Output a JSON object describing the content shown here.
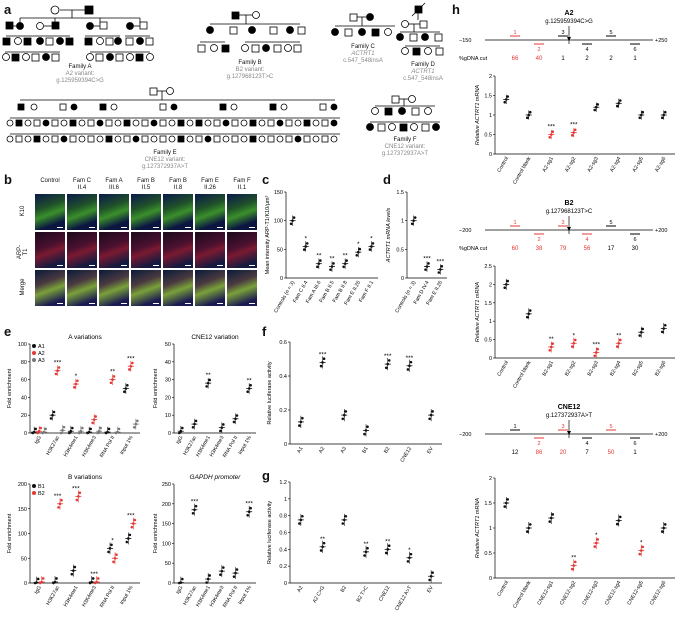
{
  "panels": {
    "a": "a",
    "b": "b",
    "c": "c",
    "d": "d",
    "e": "e",
    "f": "f",
    "g": "g",
    "h": "h"
  },
  "pedigrees": {
    "famA": {
      "name": "Family A",
      "variant": "A2 variant:",
      "hg": "g.125959394C>G"
    },
    "famB": {
      "name": "Family B",
      "variant": "B2 variant:",
      "hg": "g.127968123T>C"
    },
    "famC": {
      "name": "Family C",
      "variant": "ACTRT1",
      "hg": "c.547_548insA"
    },
    "famD": {
      "name": "Family D",
      "variant": "ACTRT1",
      "hg": "c.547_548insA"
    },
    "famE": {
      "name": "Family E",
      "variant": "CNE12 variant:",
      "hg": "g.127372937A>T"
    },
    "famF": {
      "name": "Family F",
      "variant": "CNE12 variant:",
      "hg": "g.127372937A>T"
    }
  },
  "micro": {
    "cols": [
      {
        "fam": "Control",
        "id": ""
      },
      {
        "fam": "Fam C",
        "id": "II.4"
      },
      {
        "fam": "Fam A",
        "id": "III.6"
      },
      {
        "fam": "Fam B",
        "id": "II.5"
      },
      {
        "fam": "Fam B",
        "id": "II.8"
      },
      {
        "fam": "Fam E",
        "id": "II.26"
      },
      {
        "fam": "Fam F",
        "id": "II.1"
      }
    ],
    "rows": [
      "K10",
      "ARP-T1",
      "Merge"
    ]
  },
  "chart_data": [
    {
      "panel": "c",
      "type": "scatter",
      "ylabel": "Mean intensity ARP-T1/K10/μm²",
      "ylim": [
        0,
        150
      ],
      "yticks": [
        0,
        50,
        100,
        150
      ],
      "categories": [
        "Controls (n = 3)",
        "Fam C II.4",
        "Fam A III.6",
        "Fam B II.5",
        "Fam B II.8",
        "Fam E II.26",
        "Fam F II.1"
      ],
      "values": [
        100,
        55,
        25,
        20,
        25,
        45,
        55
      ],
      "sig": [
        "",
        "*",
        "**",
        "**",
        "**",
        "*",
        "*"
      ]
    },
    {
      "panel": "d",
      "type": "scatter",
      "ylabel": "ACTRT1 mRNA levels",
      "ylim": [
        0,
        1.5
      ],
      "yticks": [
        0,
        0.5,
        1.0,
        1.5
      ],
      "categories": [
        "Controls (n = 3)",
        "Fam D IV.4",
        "Fam E II.26"
      ],
      "values": [
        1.0,
        0.2,
        0.15
      ],
      "sig": [
        "",
        "***",
        "***"
      ]
    },
    {
      "panel": "e1",
      "type": "scatter",
      "title": "A variations",
      "ylabel": "Fold enrichment",
      "ylim": [
        0,
        100
      ],
      "yticks": [
        0,
        20,
        40,
        60,
        80,
        100
      ],
      "categories": [
        "IgG",
        "H3K27ac",
        "H3K4me1",
        "H3K4me3",
        "RNA Pol II",
        "Input 1%"
      ],
      "series": [
        {
          "name": "A1",
          "values": [
            1,
            20,
            2,
            1,
            1,
            50
          ]
        },
        {
          "name": "A2",
          "values": [
            2,
            70,
            55,
            15,
            60,
            75
          ]
        },
        {
          "name": "A3",
          "values": [
            1,
            3,
            2,
            2,
            1,
            10
          ]
        }
      ],
      "sig": [
        "",
        "***",
        "*",
        "",
        "**",
        "***"
      ]
    },
    {
      "panel": "e2",
      "type": "scatter",
      "title": "CNE12 variation",
      "ylabel": "Fold enrichment",
      "ylim": [
        0,
        50
      ],
      "yticks": [
        0,
        10,
        20,
        30,
        40,
        50
      ],
      "categories": [
        "IgG",
        "H3K27ac",
        "H3K4me1",
        "H3K4me3",
        "RNA Pol II",
        "Input 1%"
      ],
      "values": [
        1,
        5,
        28,
        3,
        8,
        25
      ],
      "sig": [
        "",
        "",
        "**",
        "",
        "",
        "**"
      ]
    },
    {
      "panel": "e3",
      "type": "scatter",
      "title": "B variations",
      "ylabel": "Fold enrichment",
      "ylim": [
        0,
        200
      ],
      "yticks": [
        0,
        50,
        100,
        150,
        200
      ],
      "categories": [
        "IgG",
        "H3K27ac",
        "H3K4me1",
        "H3K4me3",
        "RNA Pol II",
        "Input 1%"
      ],
      "series": [
        {
          "name": "B1",
          "values": [
            1,
            2,
            25,
            2,
            70,
            90
          ]
        },
        {
          "name": "B2",
          "values": [
            2,
            160,
            175,
            2,
            50,
            120
          ]
        }
      ],
      "sig": [
        "",
        "***",
        "***",
        "***",
        "*",
        "***"
      ]
    },
    {
      "panel": "e4",
      "type": "scatter",
      "title": "GAPDH promoter",
      "ylabel": "Fold enrichment",
      "ylim": [
        0,
        250
      ],
      "yticks": [
        0,
        50,
        100,
        150,
        200,
        250
      ],
      "categories": [
        "IgG",
        "H3K27ac",
        "H3K4me1",
        "H3K4me3",
        "RNA Pol II",
        "Input 1%"
      ],
      "values": [
        1,
        185,
        10,
        30,
        25,
        180
      ],
      "sig": [
        "",
        "***",
        "",
        "",
        "",
        "***"
      ]
    },
    {
      "panel": "f",
      "type": "scatter",
      "ylabel": "Relative luciferase activity",
      "ylim": [
        0,
        0.6
      ],
      "yticks": [
        0,
        0.2,
        0.4,
        0.6
      ],
      "categories": [
        "A1",
        "A2",
        "A3",
        "B1",
        "B2",
        "CNE12",
        "EV"
      ],
      "values": [
        0.13,
        0.48,
        0.17,
        0.08,
        0.47,
        0.46,
        0.17
      ],
      "sig": [
        "",
        "***",
        "",
        "",
        "***",
        "***",
        ""
      ]
    },
    {
      "panel": "g",
      "type": "scatter",
      "ylabel": "Relative luciferase activity",
      "ylim": [
        0,
        1.2
      ],
      "yticks": [
        0,
        0.2,
        0.4,
        0.6,
        0.8,
        1.0,
        1.2
      ],
      "categories": [
        "A2",
        "A2 C>G",
        "B2",
        "B2 T>C",
        "CNE12",
        "CNE12 A>T",
        "EV"
      ],
      "values": [
        0.75,
        0.43,
        0.75,
        0.37,
        0.4,
        0.3,
        0.08
      ],
      "sig": [
        "",
        "**",
        "",
        "**",
        "**",
        "*",
        ""
      ]
    },
    {
      "panel": "h1",
      "type": "scatter",
      "title": "A2",
      "subtitle": "g.125959394C>G",
      "ylabel": "Relative ACTRT1 mRNA",
      "ylim": [
        0,
        2.0
      ],
      "yticks": [
        0,
        0.5,
        1.0,
        1.5,
        2.0
      ],
      "categories": [
        "Control",
        "Control blank",
        "A2-sg1",
        "A2-sg2",
        "A2-sg3",
        "A2-sg4",
        "A2-sg5",
        "A2-sg6"
      ],
      "values": [
        1.4,
        1.0,
        0.5,
        0.55,
        1.2,
        1.3,
        1.0,
        1.0
      ],
      "sig": [
        "",
        "",
        "***",
        "***",
        "",
        "",
        "",
        ""
      ],
      "gdna_label": "%gDNA cut",
      "gdna": [
        "66",
        "40",
        "1",
        "2",
        "2",
        "1"
      ]
    },
    {
      "panel": "h2",
      "type": "scatter",
      "title": "B2",
      "subtitle": "g.127968123T>C",
      "ylabel": "Relative ACTRT1 mRNA",
      "ylim": [
        0,
        2.5
      ],
      "yticks": [
        0,
        0.5,
        1.0,
        1.5,
        2.0,
        2.5
      ],
      "categories": [
        "Control",
        "Control blank",
        "B2-sg1",
        "B2-sg2",
        "B2-sg3",
        "B2-sg4",
        "B2-sg5",
        "B2-sg6"
      ],
      "values": [
        2.0,
        1.2,
        0.3,
        0.4,
        0.15,
        0.4,
        0.7,
        0.8
      ],
      "sig": [
        "",
        "",
        "**",
        "*",
        "***",
        "**",
        "",
        ""
      ],
      "gdna_label": "%gDNA cut",
      "gdna": [
        "60",
        "38",
        "79",
        "56",
        "17",
        "30"
      ]
    },
    {
      "panel": "h3",
      "type": "scatter",
      "title": "CNE12",
      "subtitle": "g.127372937A>T",
      "ylabel": "Relative ACTRT1 mRNA",
      "ylim": [
        0,
        2.0
      ],
      "yticks": [
        0,
        0.5,
        1.0,
        1.5,
        2.0
      ],
      "categories": [
        "Control",
        "Control blank",
        "CNE12-sg1",
        "CNE12-sg2",
        "CNE12-sg3",
        "CNE12-sg4",
        "CNE12-sg5",
        "CNE12-sg6"
      ],
      "values": [
        1.5,
        1.0,
        1.2,
        0.25,
        0.7,
        1.15,
        0.55,
        1.0
      ],
      "sig": [
        "",
        "",
        "",
        "**",
        "*",
        "",
        "*",
        ""
      ],
      "gdna": [
        "12",
        "86",
        "20",
        "7",
        "50",
        "1"
      ]
    }
  ],
  "axis_h": {
    "left1": "−150",
    "right1": "+250",
    "left2": "−200",
    "right2": "+200",
    "left3": "−200",
    "right3": "+200"
  }
}
